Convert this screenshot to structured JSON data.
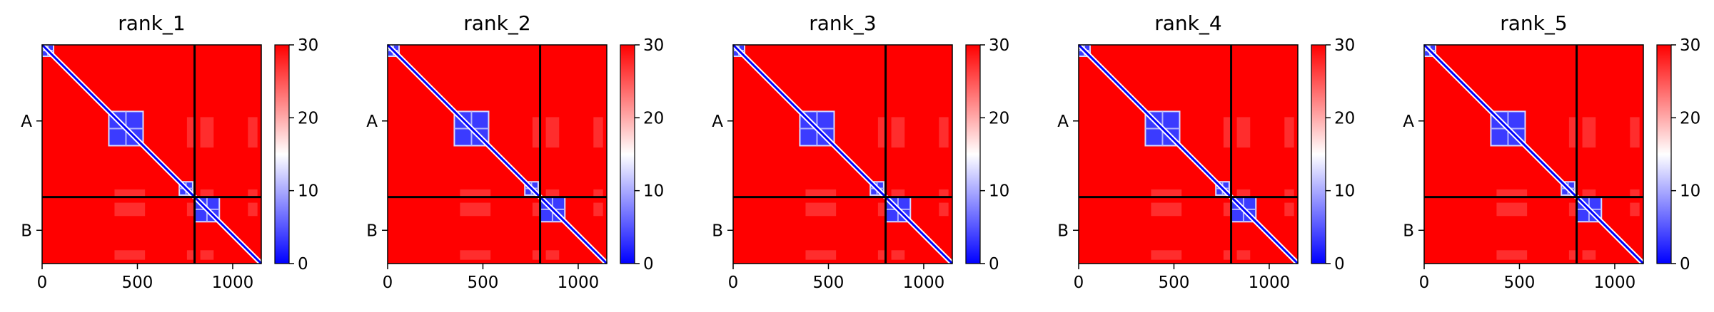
{
  "chart_data": [
    {
      "type": "heatmap",
      "title": "rank_1",
      "xlabel": "",
      "ylabel": "",
      "x_ticks": [
        0,
        500,
        1000
      ],
      "xlim": [
        0,
        1150
      ],
      "y_tick_labels": [
        "A",
        "B"
      ],
      "chain_boundary": 800,
      "colorbar": {
        "min": 0,
        "max": 30,
        "ticks": [
          0,
          10,
          20,
          30
        ],
        "colormap": "bwr"
      },
      "blue_domains": [
        [
          0,
          60
        ],
        [
          350,
          530
        ],
        [
          720,
          790
        ],
        [
          800,
          930
        ]
      ],
      "grid": false
    },
    {
      "type": "heatmap",
      "title": "rank_2",
      "xlabel": "",
      "ylabel": "",
      "x_ticks": [
        0,
        500,
        1000
      ],
      "xlim": [
        0,
        1150
      ],
      "y_tick_labels": [
        "A",
        "B"
      ],
      "chain_boundary": 800,
      "colorbar": {
        "min": 0,
        "max": 30,
        "ticks": [
          0,
          10,
          20,
          30
        ],
        "colormap": "bwr"
      },
      "blue_domains": [
        [
          0,
          60
        ],
        [
          350,
          530
        ],
        [
          720,
          790
        ],
        [
          800,
          930
        ]
      ],
      "grid": false
    },
    {
      "type": "heatmap",
      "title": "rank_3",
      "xlabel": "",
      "ylabel": "",
      "x_ticks": [
        0,
        500,
        1000
      ],
      "xlim": [
        0,
        1150
      ],
      "y_tick_labels": [
        "A",
        "B"
      ],
      "chain_boundary": 800,
      "colorbar": {
        "min": 0,
        "max": 30,
        "ticks": [
          0,
          10,
          20,
          30
        ],
        "colormap": "bwr"
      },
      "blue_domains": [
        [
          0,
          60
        ],
        [
          350,
          530
        ],
        [
          720,
          790
        ],
        [
          800,
          930
        ]
      ],
      "grid": false
    },
    {
      "type": "heatmap",
      "title": "rank_4",
      "xlabel": "",
      "ylabel": "",
      "x_ticks": [
        0,
        500,
        1000
      ],
      "xlim": [
        0,
        1150
      ],
      "y_tick_labels": [
        "A",
        "B"
      ],
      "chain_boundary": 800,
      "colorbar": {
        "min": 0,
        "max": 30,
        "ticks": [
          0,
          10,
          20,
          30
        ],
        "colormap": "bwr"
      },
      "blue_domains": [
        [
          0,
          60
        ],
        [
          350,
          530
        ],
        [
          720,
          790
        ],
        [
          800,
          930
        ]
      ],
      "grid": false
    },
    {
      "type": "heatmap",
      "title": "rank_5",
      "xlabel": "",
      "ylabel": "",
      "x_ticks": [
        0,
        500,
        1000
      ],
      "xlim": [
        0,
        1150
      ],
      "y_tick_labels": [
        "A",
        "B"
      ],
      "chain_boundary": 800,
      "colorbar": {
        "min": 0,
        "max": 30,
        "ticks": [
          0,
          10,
          20,
          30
        ],
        "colormap": "bwr"
      },
      "blue_domains": [
        [
          0,
          60
        ],
        [
          350,
          530
        ],
        [
          720,
          790
        ],
        [
          800,
          930
        ]
      ],
      "grid": false
    }
  ],
  "colors": {
    "high": "#ff0000",
    "mid": "#ffffff",
    "low": "#0000ff",
    "boundary": "#000000"
  }
}
